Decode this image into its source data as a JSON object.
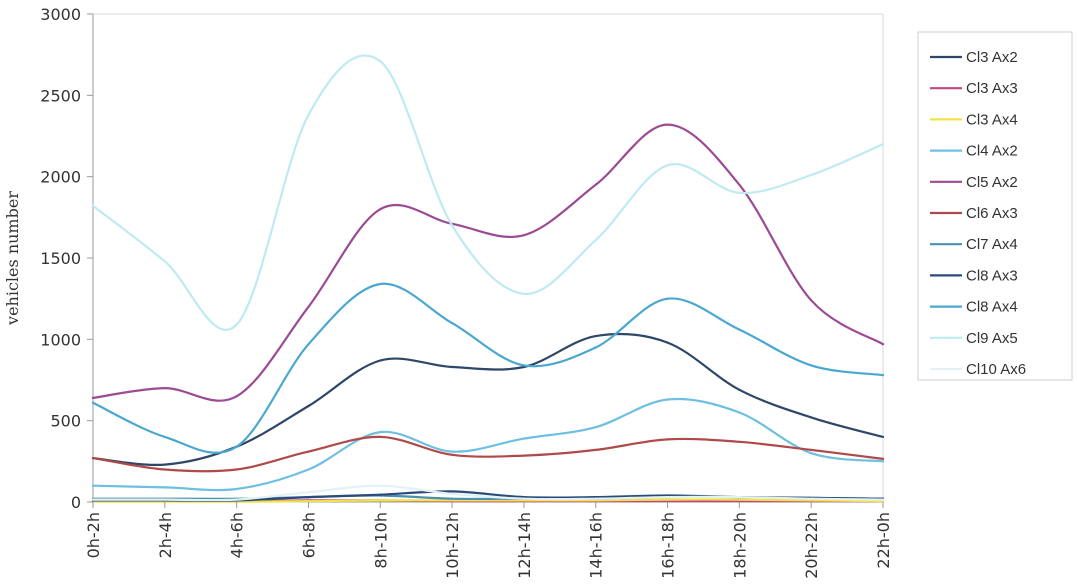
{
  "chart_data": {
    "type": "line",
    "title": "",
    "xlabel": "",
    "ylabel": "vehicles number",
    "ylim": [
      0,
      3000
    ],
    "yticks": [
      "0",
      "500",
      "1000",
      "1500",
      "2000",
      "2500",
      "3000"
    ],
    "categories": [
      "0h-2h",
      "2h-4h",
      "4h-6h",
      "6h-8h",
      "8h-10h",
      "10h-12h",
      "12h-14h",
      "14h-16h",
      "16h-18h",
      "18h-20h",
      "20h-22h",
      "22h-0h"
    ],
    "grid": false,
    "legend_position": "right",
    "series": [
      {
        "name": "Cl3  Ax2",
        "color": "#2e4668",
        "values": [
          270,
          230,
          340,
          590,
          870,
          830,
          830,
          1020,
          980,
          690,
          520,
          400
        ]
      },
      {
        "name": "Cl3  Ax3",
        "color": "#c2467f",
        "values": [
          5,
          5,
          5,
          10,
          10,
          5,
          5,
          5,
          5,
          5,
          5,
          5
        ]
      },
      {
        "name": "Cl3  Ax4",
        "color": "#f2e24a",
        "values": [
          2,
          2,
          2,
          5,
          10,
          10,
          10,
          10,
          15,
          15,
          10,
          5
        ]
      },
      {
        "name": "Cl4  Ax2",
        "color": "#6fbfe0",
        "values": [
          100,
          90,
          80,
          200,
          430,
          310,
          390,
          460,
          630,
          550,
          300,
          250
        ]
      },
      {
        "name": "Cl5  Ax2",
        "color": "#9c4a94",
        "values": [
          640,
          700,
          650,
          1200,
          1800,
          1710,
          1640,
          1950,
          2320,
          1950,
          1240,
          970
        ]
      },
      {
        "name": "Cl6  Ax3",
        "color": "#b04a4a",
        "values": [
          270,
          200,
          200,
          310,
          400,
          290,
          285,
          320,
          385,
          370,
          320,
          265
        ]
      },
      {
        "name": "Cl7  Ax4",
        "color": "#4a90b0",
        "values": [
          20,
          20,
          20,
          30,
          40,
          20,
          20,
          20,
          30,
          30,
          25,
          20
        ]
      },
      {
        "name": "Cl8  Ax3",
        "color": "#2a4a7a",
        "values": [
          10,
          10,
          10,
          30,
          45,
          65,
          30,
          30,
          40,
          30,
          25,
          20
        ]
      },
      {
        "name": "Cl8  Ax4",
        "color": "#4aa8d0",
        "values": [
          610,
          400,
          340,
          970,
          1340,
          1100,
          840,
          950,
          1250,
          1060,
          840,
          780
        ]
      },
      {
        "name": "Cl9  Ax5",
        "color": "#bfeaf2",
        "values": [
          1820,
          1480,
          1090,
          2380,
          2710,
          1700,
          1280,
          1610,
          2070,
          1900,
          2010,
          2200
        ]
      },
      {
        "name": "Cl10  Ax6",
        "color": "#e2f2f4",
        "values": [
          15,
          15,
          15,
          60,
          100,
          50,
          20,
          20,
          30,
          30,
          20,
          15
        ]
      }
    ]
  }
}
